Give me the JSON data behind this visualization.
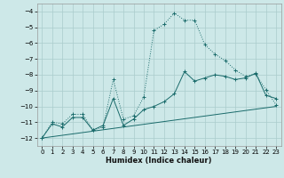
{
  "xlabel": "Humidex (Indice chaleur)",
  "background_color": "#cde8e8",
  "line_color": "#1a6b6b",
  "grid_color": "#aacccc",
  "xlim": [
    -0.5,
    23.5
  ],
  "ylim": [
    -12.5,
    -3.5
  ],
  "yticks": [
    -12,
    -11,
    -10,
    -9,
    -8,
    -7,
    -6,
    -5,
    -4
  ],
  "xticks": [
    0,
    1,
    2,
    3,
    4,
    5,
    6,
    7,
    8,
    9,
    10,
    11,
    12,
    13,
    14,
    15,
    16,
    17,
    18,
    19,
    20,
    21,
    22,
    23
  ],
  "line1_x": [
    0,
    1,
    2,
    3,
    4,
    5,
    6,
    7,
    8,
    9,
    10,
    11,
    12,
    13,
    14,
    15,
    16,
    17,
    18,
    19,
    20,
    21,
    22,
    23
  ],
  "line1_y": [
    -12,
    -11,
    -11.1,
    -10.5,
    -10.5,
    -11.5,
    -11.3,
    -8.3,
    -10.8,
    -10.6,
    -9.4,
    -5.2,
    -4.8,
    -4.1,
    -4.55,
    -4.55,
    -6.1,
    -6.7,
    -7.1,
    -7.7,
    -8.1,
    -7.95,
    -8.95,
    -9.9
  ],
  "line2_x": [
    0,
    1,
    2,
    3,
    4,
    5,
    6,
    7,
    8,
    9,
    10,
    11,
    12,
    13,
    14,
    15,
    16,
    17,
    18,
    19,
    20,
    21,
    22,
    23
  ],
  "line2_y": [
    -12,
    -11.1,
    -11.3,
    -10.7,
    -10.7,
    -11.5,
    -11.2,
    -9.5,
    -11.2,
    -10.8,
    -10.2,
    -10.0,
    -9.7,
    -9.2,
    -7.8,
    -8.4,
    -8.2,
    -8.0,
    -8.1,
    -8.3,
    -8.2,
    -7.9,
    -9.3,
    -9.5
  ],
  "line3_x": [
    0,
    23
  ],
  "line3_y": [
    -12,
    -10.0
  ]
}
